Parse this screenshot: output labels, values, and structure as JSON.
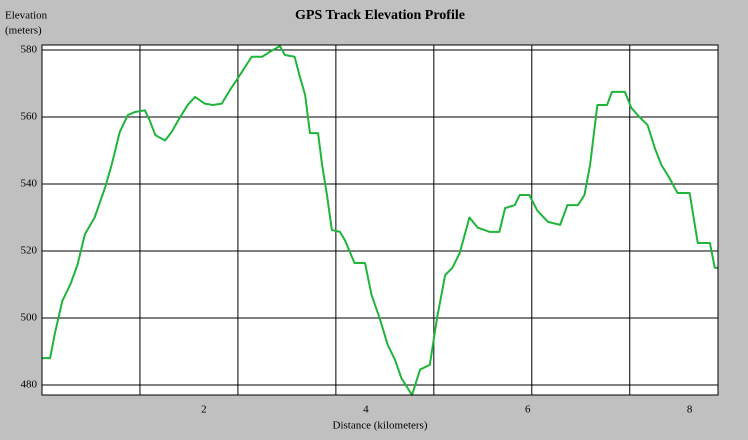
{
  "chart_data": {
    "type": "line",
    "title": "GPS Track Elevation Profile",
    "y_label_line1": "Elevation",
    "y_label_line2": "(meters)",
    "x_label": "Distance (kilometers)",
    "xlim": [
      0,
      8.35
    ],
    "ylim": [
      477,
      581.5
    ],
    "xticks": [
      2,
      4,
      6,
      8
    ],
    "yticks": [
      480,
      500,
      520,
      540,
      560,
      580
    ],
    "xgrid": [
      1.21,
      2.42,
      3.63,
      4.84,
      6.05,
      7.26
    ],
    "grid": true,
    "series": [
      {
        "color": "#1fb53a",
        "x": [
          0,
          0.1,
          0.16,
          0.25,
          0.35,
          0.44,
          0.53,
          0.65,
          0.78,
          0.86,
          0.96,
          1.06,
          1.15,
          1.27,
          1.33,
          1.4,
          1.52,
          1.6,
          1.7,
          1.8,
          1.89,
          2.01,
          2.11,
          2.22,
          2.32,
          2.42,
          2.51,
          2.59,
          2.72,
          2.81,
          2.94,
          3.0,
          3.12,
          3.19,
          3.25,
          3.31,
          3.41,
          3.46,
          3.52,
          3.58,
          3.68,
          3.74,
          3.86,
          3.99,
          4.07,
          4.17,
          4.27,
          4.36,
          4.44,
          4.57,
          4.67,
          4.79,
          4.88,
          4.98,
          5.07,
          5.16,
          5.28,
          5.38,
          5.53,
          5.65,
          5.72,
          5.84,
          5.9,
          6.02,
          6.12,
          6.25,
          6.4,
          6.49,
          6.62,
          6.7,
          6.77,
          6.86,
          6.98,
          7.04,
          7.2,
          7.28,
          7.38,
          7.48,
          7.57,
          7.65,
          7.75,
          7.85,
          8.0,
          8.1,
          8.25,
          8.31,
          8.35
        ],
        "values": [
          488,
          488,
          495.5,
          505,
          510,
          516,
          525,
          530,
          539,
          545.7,
          555.5,
          560.6,
          561.5,
          562,
          559,
          554.6,
          553,
          555.5,
          559.7,
          563.6,
          566,
          564,
          563.6,
          564,
          568,
          571.6,
          575,
          578,
          578,
          579.4,
          581.2,
          578.5,
          578,
          571.6,
          566.6,
          555.2,
          555.2,
          545.7,
          536.7,
          526.3,
          525.7,
          523.3,
          516.4,
          516.4,
          506.9,
          500,
          492,
          487.5,
          482,
          477,
          484.6,
          486,
          500,
          512.8,
          515,
          519.4,
          530,
          527,
          525.7,
          525.7,
          532.8,
          533.7,
          536.7,
          536.7,
          532,
          528.7,
          527.8,
          533.7,
          533.7,
          536.7,
          545.7,
          563.6,
          563.6,
          567.5,
          567.5,
          562.7,
          560,
          557.6,
          550.7,
          545.7,
          541.8,
          537.3,
          537.3,
          522.4,
          522.4,
          515,
          515
        ]
      }
    ]
  }
}
